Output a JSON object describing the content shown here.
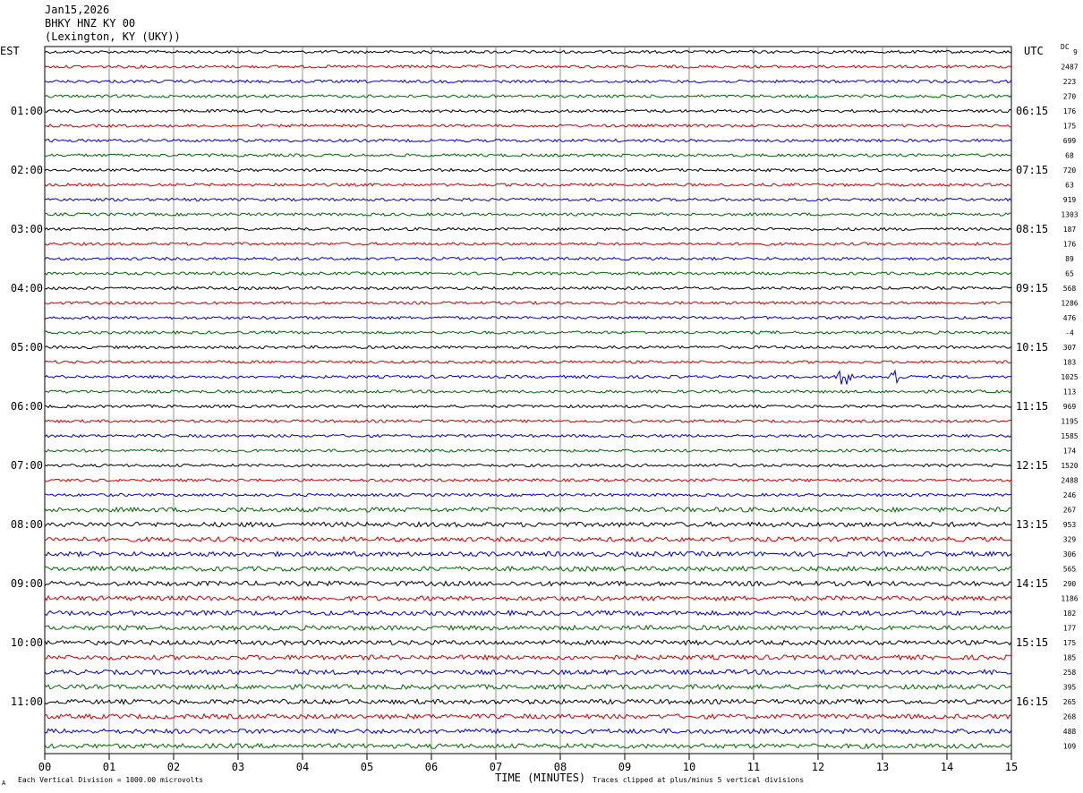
{
  "header": {
    "date": "Jan15,2026",
    "station": "BHKY HNZ KY 00",
    "location": "(Lexington, KY (UKY))"
  },
  "left_zone": "EST",
  "right_zone": "UTC",
  "dc_label": "DC",
  "dc_first_value": "9",
  "footer": {
    "scale_note": "Each Vertical Division = 1000.00 microvolts",
    "xlabel": "TIME (MINUTES)",
    "clip_note": "Traces clipped at plus/minus 5 vertical divisions",
    "corner_mark": "A"
  },
  "chart_data": {
    "type": "line",
    "title": "BHKY HNZ KY 00",
    "xlabel": "TIME (MINUTES)",
    "xlim": [
      0,
      15
    ],
    "x_ticks": [
      "00",
      "01",
      "02",
      "03",
      "04",
      "05",
      "06",
      "07",
      "08",
      "09",
      "10",
      "11",
      "12",
      "13",
      "14",
      "15"
    ],
    "rows_per_hour": 4,
    "minutes_per_row": 15,
    "est_hour_labels": [
      "01:00",
      "02:00",
      "03:00",
      "04:00",
      "05:00",
      "06:00",
      "07:00",
      "08:00",
      "09:00",
      "10:00",
      "11:00"
    ],
    "utc_hour_labels": [
      "06:15",
      "07:15",
      "08:15",
      "09:15",
      "10:15",
      "11:15",
      "12:15",
      "13:15",
      "14:15",
      "15:15",
      "16:15"
    ],
    "trace_colors": [
      "#000000",
      "#cc0000",
      "#0000cc",
      "#006600"
    ],
    "row_dc_offsets": [
      "2487",
      "223",
      "270",
      "176",
      "175",
      "699",
      "68",
      "720",
      "63",
      "919",
      "1303",
      "187",
      "176",
      "89",
      "65",
      "568",
      "1286",
      "476",
      "-4",
      "307",
      "183",
      "1025",
      "113",
      "969",
      "1195",
      "1585",
      "174",
      "1520",
      "2488",
      "246",
      "267",
      "953",
      "329",
      "306",
      "565",
      "290",
      "1186",
      "182",
      "177",
      "175",
      "185",
      "258",
      "395",
      "265",
      "268",
      "488",
      "109"
    ],
    "events": [
      {
        "row": 22,
        "minute": 12.4,
        "amplitude": "large"
      },
      {
        "row": 22,
        "minute": 13.2,
        "amplitude": "large"
      }
    ]
  }
}
